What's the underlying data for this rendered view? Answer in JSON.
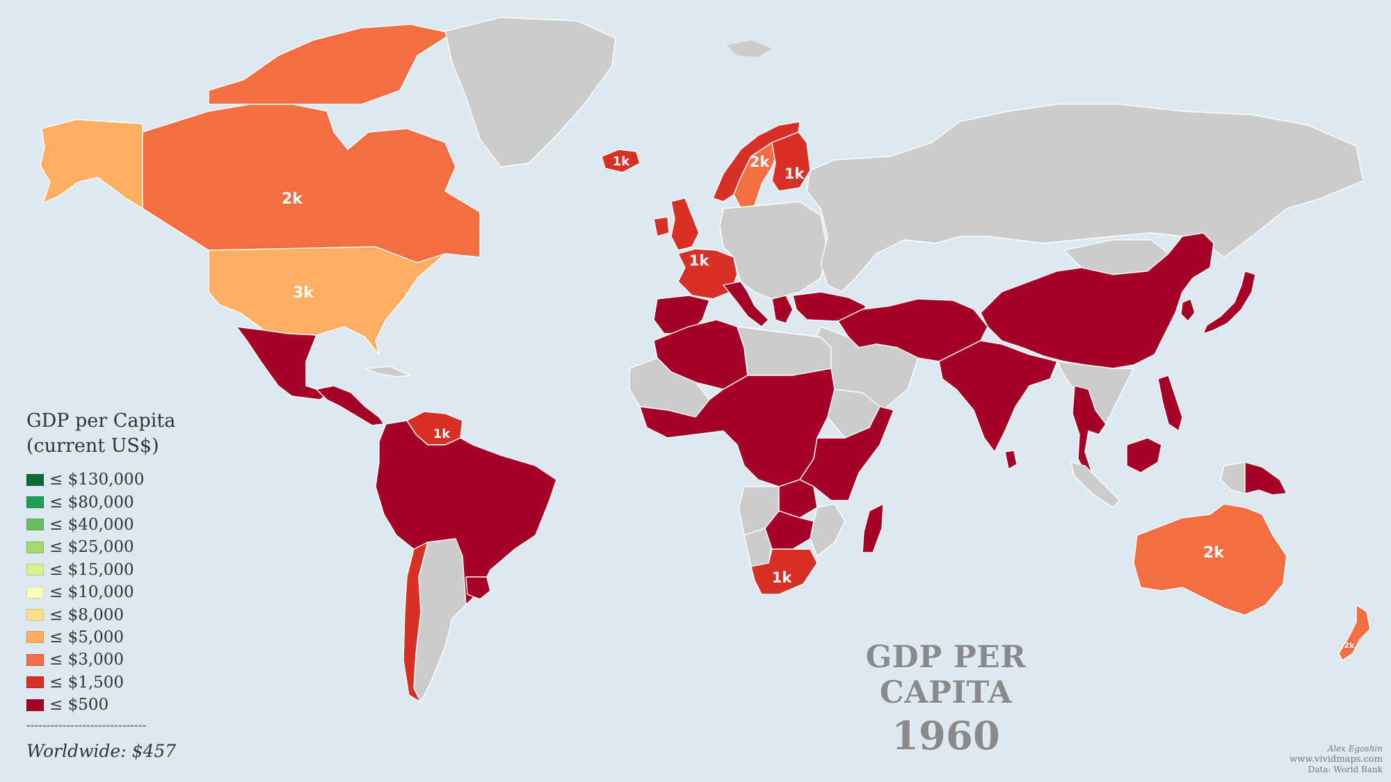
{
  "colors": {
    "ocean": "#dde9f1",
    "no_data": "#cccccc",
    "le_130000": "#0b6b34",
    "le_80000": "#1f9e58",
    "le_40000": "#66bf5e",
    "le_25000": "#a6d96a",
    "le_15000": "#d9ef8b",
    "le_10000": "#ffffbf",
    "le_8000": "#fee08b",
    "le_5000": "#fdae61",
    "le_3000": "#f46d43",
    "le_1500": "#d73027",
    "le_500": "#a50026"
  },
  "legend": {
    "title_line1": "GDP per Capita",
    "title_line2": "(current US$)",
    "items": [
      {
        "label": "≤ $130,000",
        "color": "#0b6b34"
      },
      {
        "label": "≤ $80,000",
        "color": "#1f9e58"
      },
      {
        "label": "≤ $40,000",
        "color": "#66bf5e"
      },
      {
        "label": "≤ $25,000",
        "color": "#a6d96a"
      },
      {
        "label": "≤ $15,000",
        "color": "#d9ef8b"
      },
      {
        "label": "≤ $10,000",
        "color": "#ffffbf"
      },
      {
        "label": "≤ $8,000",
        "color": "#fee08b"
      },
      {
        "label": "≤ $5,000",
        "color": "#fdae61"
      },
      {
        "label": "≤ $3,000",
        "color": "#f46d43"
      },
      {
        "label": "≤ $1,500",
        "color": "#d73027"
      },
      {
        "label": "≤ $500",
        "color": "#a50026"
      }
    ],
    "separator": "------------------------------",
    "worldwide": "Worldwide: $457"
  },
  "title": {
    "line1": "GDP PER CAPITA",
    "line2": "1960"
  },
  "credits": {
    "author": "Alex Egoshin",
    "site": "www.vividmaps.com",
    "source": "Data: World Bank"
  },
  "value_labels": {
    "iceland": "1k",
    "norway_sweden": "2k",
    "finland": "1k",
    "canada": "2k",
    "usa": "3k",
    "france": "1k",
    "venezuela": "1k",
    "south_africa": "1k",
    "australia": "2k",
    "new_zealand": "2k"
  },
  "regions": [
    {
      "id": "alaska",
      "name": "Alaska",
      "bin": "le_5000"
    },
    {
      "id": "canada",
      "name": "Canada",
      "bin": "le_3000"
    },
    {
      "id": "canada-north",
      "name": "Canadian Arctic Islands",
      "bin": "le_3000"
    },
    {
      "id": "greenland",
      "name": "Greenland",
      "bin": "no_data"
    },
    {
      "id": "usa",
      "name": "United States",
      "bin": "le_5000"
    },
    {
      "id": "mexico",
      "name": "Mexico",
      "bin": "le_500"
    },
    {
      "id": "central-america",
      "name": "Central America",
      "bin": "le_500"
    },
    {
      "id": "cuba",
      "name": "Cuba",
      "bin": "no_data"
    },
    {
      "id": "venezuela",
      "name": "Venezuela",
      "bin": "le_1500"
    },
    {
      "id": "south-america-north",
      "name": "Colombia, Ecuador, Peru, Brazil, Bolivia, Paraguay",
      "bin": "le_500"
    },
    {
      "id": "argentina",
      "name": "Argentina",
      "bin": "no_data"
    },
    {
      "id": "uruguay",
      "name": "Uruguay",
      "bin": "le_500"
    },
    {
      "id": "chile",
      "name": "Chile",
      "bin": "le_1500"
    },
    {
      "id": "iceland",
      "name": "Iceland",
      "bin": "le_1500"
    },
    {
      "id": "norway",
      "name": "Norway",
      "bin": "le_1500"
    },
    {
      "id": "sweden",
      "name": "Sweden",
      "bin": "le_3000"
    },
    {
      "id": "finland",
      "name": "Finland",
      "bin": "le_1500"
    },
    {
      "id": "uk",
      "name": "United Kingdom",
      "bin": "le_1500"
    },
    {
      "id": "ireland",
      "name": "Ireland",
      "bin": "le_1500"
    },
    {
      "id": "france-benelux",
      "name": "France and Benelux",
      "bin": "le_1500"
    },
    {
      "id": "iberia",
      "name": "Spain and Portugal",
      "bin": "le_500"
    },
    {
      "id": "italy",
      "name": "Italy",
      "bin": "le_500"
    },
    {
      "id": "greece",
      "name": "Greece",
      "bin": "le_500"
    },
    {
      "id": "east-europe",
      "name": "Germany, Poland, Eastern Europe",
      "bin": "no_data"
    },
    {
      "id": "russia",
      "name": "Russia and Central Asia",
      "bin": "no_data"
    },
    {
      "id": "turkey",
      "name": "Turkey",
      "bin": "le_500"
    },
    {
      "id": "middle-east",
      "name": "Saudi Arabia and Gulf",
      "bin": "no_data"
    },
    {
      "id": "iran-pak",
      "name": "Iran, Afghanistan, Pakistan, Iraq, Syria",
      "bin": "le_500"
    },
    {
      "id": "india",
      "name": "India",
      "bin": "le_500"
    },
    {
      "id": "sri-lanka",
      "name": "Sri Lanka",
      "bin": "le_500"
    },
    {
      "id": "china",
      "name": "China",
      "bin": "le_500"
    },
    {
      "id": "mongolia",
      "name": "Mongolia",
      "bin": "no_data"
    },
    {
      "id": "korea",
      "name": "South Korea",
      "bin": "le_500"
    },
    {
      "id": "japan",
      "name": "Japan",
      "bin": "le_500"
    },
    {
      "id": "se-asia",
      "name": "Thailand, Malaysia",
      "bin": "le_500"
    },
    {
      "id": "indochina",
      "name": "Myanmar, Laos, Vietnam",
      "bin": "no_data"
    },
    {
      "id": "philippines",
      "name": "Philippines",
      "bin": "le_500"
    },
    {
      "id": "sumatra",
      "name": "Sumatra",
      "bin": "no_data"
    },
    {
      "id": "borneo",
      "name": "Borneo",
      "bin": "le_500"
    },
    {
      "id": "new-guinea-w",
      "name": "Western New Guinea",
      "bin": "no_data"
    },
    {
      "id": "png",
      "name": "Papua New Guinea",
      "bin": "le_500"
    },
    {
      "id": "north-africa-west",
      "name": "Morocco and Algeria",
      "bin": "le_500"
    },
    {
      "id": "libya-egypt",
      "name": "Libya and Egypt",
      "bin": "no_data"
    },
    {
      "id": "west-africa-grey",
      "name": "Mauritania, Mali",
      "bin": "no_data"
    },
    {
      "id": "sahel-central",
      "name": "Niger, Chad, Sudan, Nigeria, Central Africa",
      "bin": "le_500"
    },
    {
      "id": "ethiopia",
      "name": "Ethiopia",
      "bin": "no_data"
    },
    {
      "id": "somalia-east",
      "name": "Somalia, Kenya, Tanzania",
      "bin": "le_500"
    },
    {
      "id": "angola",
      "name": "Angola",
      "bin": "no_data"
    },
    {
      "id": "zambia",
      "name": "Zambia",
      "bin": "le_500"
    },
    {
      "id": "namibia",
      "name": "Namibia",
      "bin": "no_data"
    },
    {
      "id": "botswana-zim",
      "name": "Botswana, Zimbabwe",
      "bin": "le_500"
    },
    {
      "id": "mozambique",
      "name": "Mozambique",
      "bin": "no_data"
    },
    {
      "id": "south-africa",
      "name": "South Africa",
      "bin": "le_1500"
    },
    {
      "id": "madagascar",
      "name": "Madagascar",
      "bin": "le_500"
    },
    {
      "id": "australia",
      "name": "Australia",
      "bin": "le_3000"
    },
    {
      "id": "new-zealand",
      "name": "New Zealand",
      "bin": "le_3000"
    }
  ]
}
